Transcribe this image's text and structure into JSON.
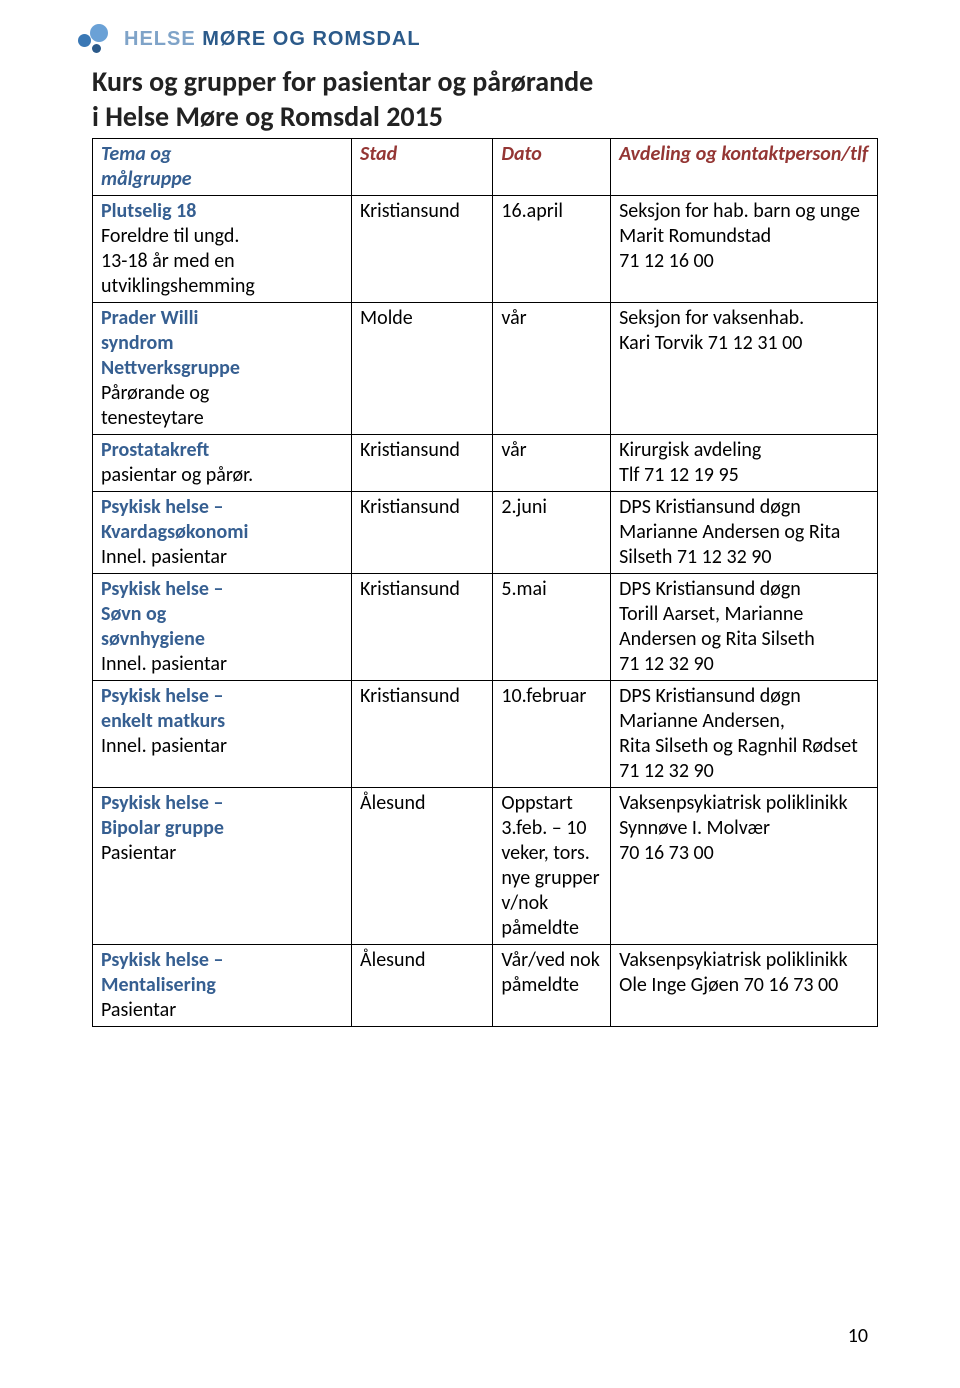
{
  "brand": {
    "name_light": "HELSE ",
    "name_dark": "MØRE OG ROMSDAL",
    "dot_colors": {
      "big": "#6aa1d6",
      "mid": "#3a78b5",
      "small": "#2b5a8a"
    }
  },
  "title_line1": "Kurs og grupper for pasientar og pårørande",
  "title_line2": "i Helse Møre og Romsdal  2015",
  "colors": {
    "header_topic": "#365f91",
    "header_other": "#943634",
    "topic_key": "#365f91",
    "text": "#000000"
  },
  "headers": {
    "topic_l1": "Tema og",
    "topic_l2": "målgruppe",
    "stad": "Stad",
    "dato": "Dato",
    "contact": "Avdeling og kontaktperson/tlf"
  },
  "rows": [
    {
      "topic": [
        {
          "text": "Plutselig 18",
          "bold": true,
          "color": "#365f91"
        },
        {
          "text": "Foreldre til ungd.",
          "bold": false,
          "color": "#000000"
        },
        {
          "text": "13-18 år med en",
          "bold": false,
          "color": "#000000"
        },
        {
          "text": "utviklingshemming",
          "bold": false,
          "color": "#000000"
        }
      ],
      "stad": "Kristiansund",
      "dato": "16.april",
      "contact": [
        "Seksjon for hab. barn og unge",
        "Marit Romundstad",
        "71 12 16 00"
      ]
    },
    {
      "topic": [
        {
          "text": "Prader Willi",
          "bold": true,
          "color": "#365f91"
        },
        {
          "text": "syndrom",
          "bold": true,
          "color": "#365f91"
        },
        {
          "text": "Nettverksgruppe",
          "bold": true,
          "color": "#365f91"
        },
        {
          "text": "Pårørande og",
          "bold": false,
          "color": "#000000"
        },
        {
          "text": "tenesteytare",
          "bold": false,
          "color": "#000000"
        }
      ],
      "stad": "Molde",
      "dato": "vår",
      "contact": [
        "Seksjon for vaksenhab.",
        "Kari Torvik 71 12 31 00"
      ]
    },
    {
      "topic": [
        {
          "text": "Prostatakreft",
          "bold": true,
          "color": "#365f91"
        },
        {
          "text": "pasientar og pårør.",
          "bold": false,
          "color": "#000000"
        }
      ],
      "stad": "Kristiansund",
      "dato": "vår",
      "contact": [
        "Kirurgisk avdeling",
        "Tlf 71 12 19 95"
      ]
    },
    {
      "topic": [
        {
          "text": "Psykisk helse –",
          "bold": true,
          "color": "#365f91"
        },
        {
          "text": "Kvardagsøkonomi",
          "bold": true,
          "color": "#365f91"
        },
        {
          "text": "Innel. pasientar",
          "bold": false,
          "color": "#000000"
        }
      ],
      "stad": "Kristiansund",
      "dato": "2.juni",
      "contact": [
        "DPS Kristiansund døgn",
        "Marianne Andersen og Rita",
        "Silseth 71 12 32 90"
      ]
    },
    {
      "topic": [
        {
          "text": "Psykisk helse –",
          "bold": true,
          "color": "#365f91"
        },
        {
          "text": "Søvn og",
          "bold": true,
          "color": "#365f91"
        },
        {
          "text": "søvnhygiene",
          "bold": true,
          "color": "#365f91"
        },
        {
          "text": "Innel. pasientar",
          "bold": false,
          "color": "#000000"
        }
      ],
      "stad": "Kristiansund",
      "dato": "5.mai",
      "contact": [
        "DPS Kristiansund døgn",
        "Torill Aarset, Marianne",
        "Andersen og Rita Silseth",
        "71 12 32 90"
      ]
    },
    {
      "topic": [
        {
          "text": "Psykisk helse –",
          "bold": true,
          "color": "#365f91"
        },
        {
          "text": "enkelt matkurs",
          "bold": true,
          "color": "#365f91"
        },
        {
          "text": "Innel. pasientar",
          "bold": false,
          "color": "#000000"
        }
      ],
      "stad": "Kristiansund",
      "dato": "10.februar",
      "contact": [
        "DPS Kristiansund døgn",
        "Marianne Andersen,",
        "Rita Silseth og Ragnhil Rødset",
        "71 12 32 90"
      ]
    },
    {
      "topic": [
        {
          "text": "Psykisk helse –",
          "bold": true,
          "color": "#365f91"
        },
        {
          "text": "Bipolar gruppe",
          "bold": true,
          "color": "#365f91"
        },
        {
          "text": "Pasientar",
          "bold": false,
          "color": "#000000"
        }
      ],
      "stad": "Ålesund",
      "dato_lines": [
        "Oppstart",
        "3.feb. – 10",
        "veker, tors.",
        "nye grupper",
        "v/nok",
        "påmeldte"
      ],
      "contact": [
        "Vaksenpsykiatrisk poliklinikk",
        "Synnøve I. Molvær",
        "70 16 73 00"
      ]
    },
    {
      "topic": [
        {
          "text": "Psykisk helse –",
          "bold": true,
          "color": "#365f91"
        },
        {
          "text": "Mentalisering",
          "bold": true,
          "color": "#365f91"
        },
        {
          "text": "Pasientar",
          "bold": false,
          "color": "#000000"
        }
      ],
      "stad": "Ålesund",
      "dato_lines": [
        "Vår/ved nok",
        "påmeldte"
      ],
      "contact": [
        "Vaksenpsykiatrisk poliklinikk",
        "Ole Inge Gjøen 70 16 73 00"
      ]
    }
  ],
  "page_number": "10"
}
